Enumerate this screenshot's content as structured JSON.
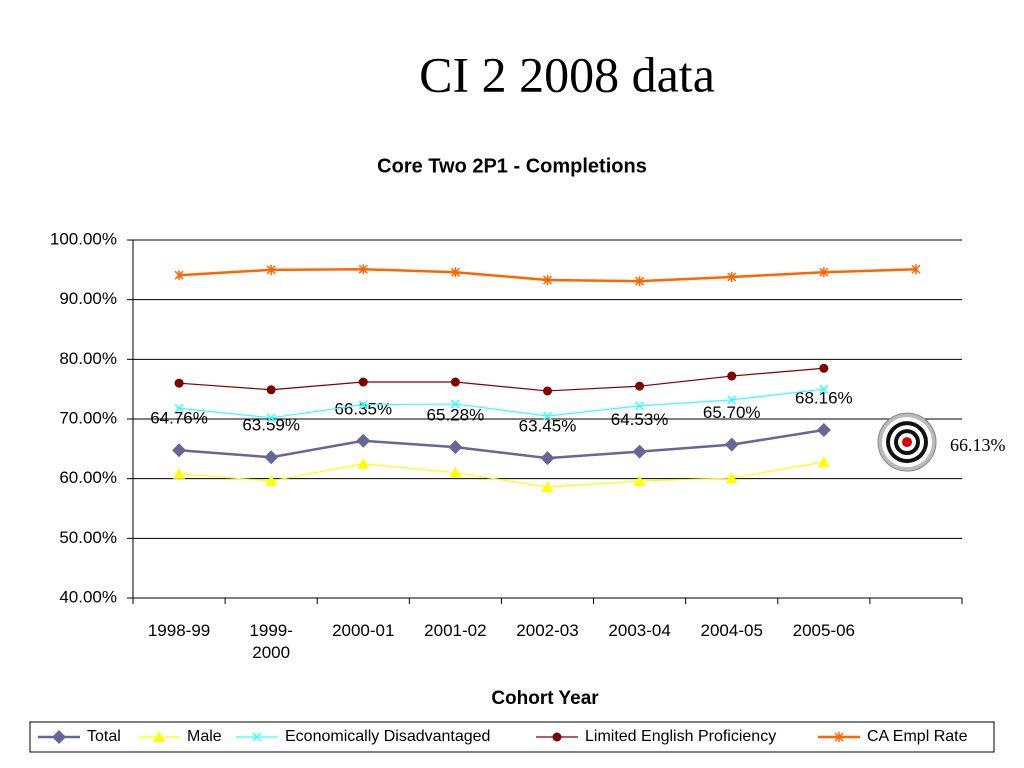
{
  "slide_title": "CI 2 2008 data",
  "chart_data": {
    "type": "line",
    "title": "Core Two 2P1 - Completions",
    "xlabel": "Cohort Year",
    "categories": [
      "1998-99",
      "1999-2000",
      "2000-01",
      "2001-02",
      "2002-03",
      "2003-04",
      "2004-05",
      "2005-06",
      null
    ],
    "ylim": [
      40,
      100
    ],
    "yticks": [
      {
        "value": 40,
        "label": "40.00%"
      },
      {
        "value": 50,
        "label": "50.00%"
      },
      {
        "value": 60,
        "label": "60.00%"
      },
      {
        "value": 70,
        "label": "70.00%"
      },
      {
        "value": 80,
        "label": "80.00%"
      },
      {
        "value": 90,
        "label": "90.00%"
      },
      {
        "value": 100,
        "label": "100.00%"
      }
    ],
    "grid": true,
    "legend": "bottom",
    "series": [
      {
        "name": "Total",
        "color": "#666699",
        "marker": "diamond",
        "values": [
          64.76,
          63.59,
          66.35,
          65.28,
          63.45,
          64.53,
          65.7,
          68.16,
          null
        ],
        "value_labels": [
          "64.76%",
          "63.59%",
          "66.35%",
          "65.28%",
          "63.45%",
          "64.53%",
          "65.70%",
          "68.16%",
          null
        ]
      },
      {
        "name": "Male",
        "color": "#ffff00",
        "marker": "triangle",
        "values": [
          60.8,
          59.6,
          62.5,
          61.0,
          58.6,
          59.6,
          60.1,
          62.8,
          null
        ]
      },
      {
        "name": "Economically Disadvantaged",
        "color": "#33ffff",
        "marker": "x",
        "values": [
          71.8,
          70.2,
          72.4,
          72.5,
          70.5,
          72.2,
          73.2,
          75.0,
          null
        ]
      },
      {
        "name": "Limited English Proficiency",
        "color": "#800000",
        "marker": "circle",
        "values": [
          76.0,
          74.9,
          76.2,
          76.2,
          74.7,
          75.5,
          77.2,
          78.5,
          null
        ]
      },
      {
        "name": "CA Empl Rate",
        "color": "#ff6600",
        "marker": "asterisk",
        "values": [
          94.1,
          95.0,
          95.1,
          94.6,
          93.3,
          93.1,
          93.8,
          94.6,
          95.1
        ]
      }
    ],
    "target": {
      "value": 66.13,
      "label": "66.13%"
    }
  }
}
